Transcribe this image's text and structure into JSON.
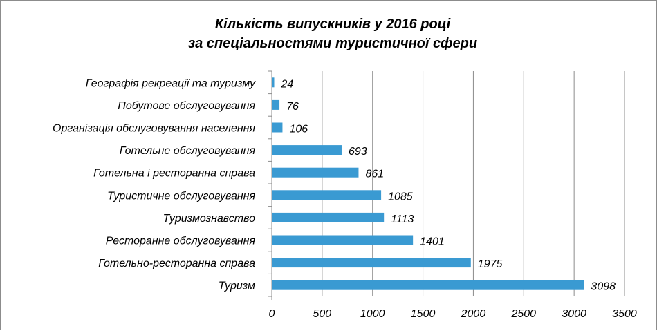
{
  "chart_data": {
    "type": "bar",
    "orientation": "horizontal",
    "title": "Кількість випускників у 2016 році",
    "subtitle": "за спеціальностями туристичної сфери",
    "xlabel": "",
    "ylabel": "",
    "categories": [
      "Туризм",
      "Готельно-ресторанна справа",
      "Ресторанне обслуговування",
      "Туризмознавство",
      "Туристичне обслуговування",
      "Готельна і ресторанна справа",
      "Готельне обслуговування",
      "Організація обслуговування населення",
      "Побутове обслуговування",
      "Географія рекреації та туризму"
    ],
    "values": [
      3098,
      1975,
      1401,
      1113,
      1085,
      861,
      693,
      106,
      76,
      24
    ],
    "xlim": [
      0,
      3500
    ],
    "ticks": [
      0,
      500,
      1000,
      1500,
      2000,
      2500,
      3000,
      3500
    ],
    "grid": true,
    "legend": "none",
    "bar_color": "#3a9ad2",
    "grid_color": "#8c8c8c"
  }
}
